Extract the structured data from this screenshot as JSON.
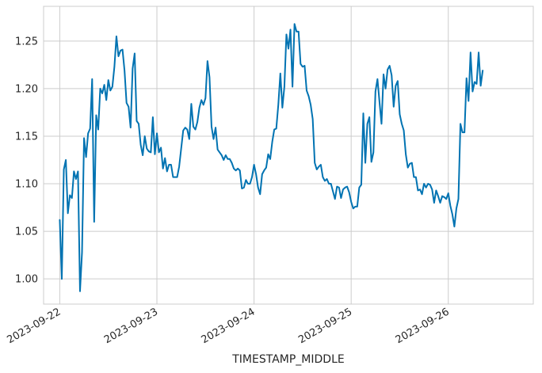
{
  "chart_data": {
    "type": "line",
    "title": "",
    "xlabel": "TIMESTAMP_MIDDLE",
    "ylabel": "",
    "grid": true,
    "xlim": [
      "2023-09-21T20:00:00",
      "2023-09-26T21:00:00"
    ],
    "ylim": [
      0.9735,
      1.2865
    ],
    "x_ticks": [
      "2023-09-22",
      "2023-09-23",
      "2023-09-24",
      "2023-09-25",
      "2023-09-26"
    ],
    "y_ticks": [
      "1.00",
      "1.05",
      "1.10",
      "1.15",
      "1.20",
      "1.25"
    ],
    "series": [
      {
        "color": "#0173b2",
        "x_start": "2023-09-22T00:00:00",
        "x_step_hours": 0.5,
        "values": [
          1.062,
          1.0,
          1.115,
          1.125,
          1.069,
          1.088,
          1.085,
          1.113,
          1.105,
          1.113,
          0.987,
          1.028,
          1.148,
          1.128,
          1.153,
          1.158,
          1.21,
          1.06,
          1.172,
          1.157,
          1.2,
          1.195,
          1.204,
          1.188,
          1.209,
          1.198,
          1.202,
          1.223,
          1.255,
          1.234,
          1.24,
          1.241,
          1.219,
          1.185,
          1.181,
          1.159,
          1.221,
          1.237,
          1.166,
          1.163,
          1.141,
          1.13,
          1.15,
          1.137,
          1.134,
          1.133,
          1.17,
          1.131,
          1.153,
          1.133,
          1.138,
          1.116,
          1.127,
          1.113,
          1.12,
          1.12,
          1.107,
          1.107,
          1.107,
          1.118,
          1.137,
          1.156,
          1.159,
          1.157,
          1.147,
          1.184,
          1.16,
          1.157,
          1.165,
          1.18,
          1.188,
          1.183,
          1.19,
          1.229,
          1.212,
          1.16,
          1.147,
          1.159,
          1.136,
          1.133,
          1.13,
          1.125,
          1.13,
          1.126,
          1.126,
          1.122,
          1.116,
          1.114,
          1.116,
          1.114,
          1.095,
          1.096,
          1.104,
          1.1,
          1.1,
          1.107,
          1.12,
          1.11,
          1.096,
          1.089,
          1.11,
          1.114,
          1.117,
          1.131,
          1.126,
          1.144,
          1.157,
          1.158,
          1.183,
          1.216,
          1.18,
          1.202,
          1.257,
          1.242,
          1.262,
          1.202,
          1.268,
          1.26,
          1.26,
          1.226,
          1.223,
          1.224,
          1.198,
          1.192,
          1.183,
          1.168,
          1.122,
          1.115,
          1.118,
          1.12,
          1.107,
          1.103,
          1.105,
          1.1,
          1.1,
          1.092,
          1.084,
          1.097,
          1.096,
          1.085,
          1.094,
          1.096,
          1.097,
          1.091,
          1.081,
          1.074,
          1.076,
          1.076,
          1.096,
          1.099,
          1.174,
          1.122,
          1.163,
          1.17,
          1.123,
          1.133,
          1.197,
          1.21,
          1.186,
          1.163,
          1.215,
          1.2,
          1.22,
          1.224,
          1.214,
          1.181,
          1.203,
          1.208,
          1.173,
          1.163,
          1.156,
          1.131,
          1.117,
          1.121,
          1.122,
          1.107,
          1.107,
          1.093,
          1.094,
          1.089,
          1.1,
          1.096,
          1.1,
          1.099,
          1.094,
          1.08,
          1.093,
          1.087,
          1.08,
          1.087,
          1.086,
          1.084,
          1.09,
          1.077,
          1.068,
          1.055,
          1.074,
          1.084,
          1.163,
          1.154,
          1.154,
          1.211,
          1.187,
          1.238,
          1.197,
          1.207,
          1.205,
          1.238,
          1.203,
          1.219
        ]
      }
    ]
  }
}
